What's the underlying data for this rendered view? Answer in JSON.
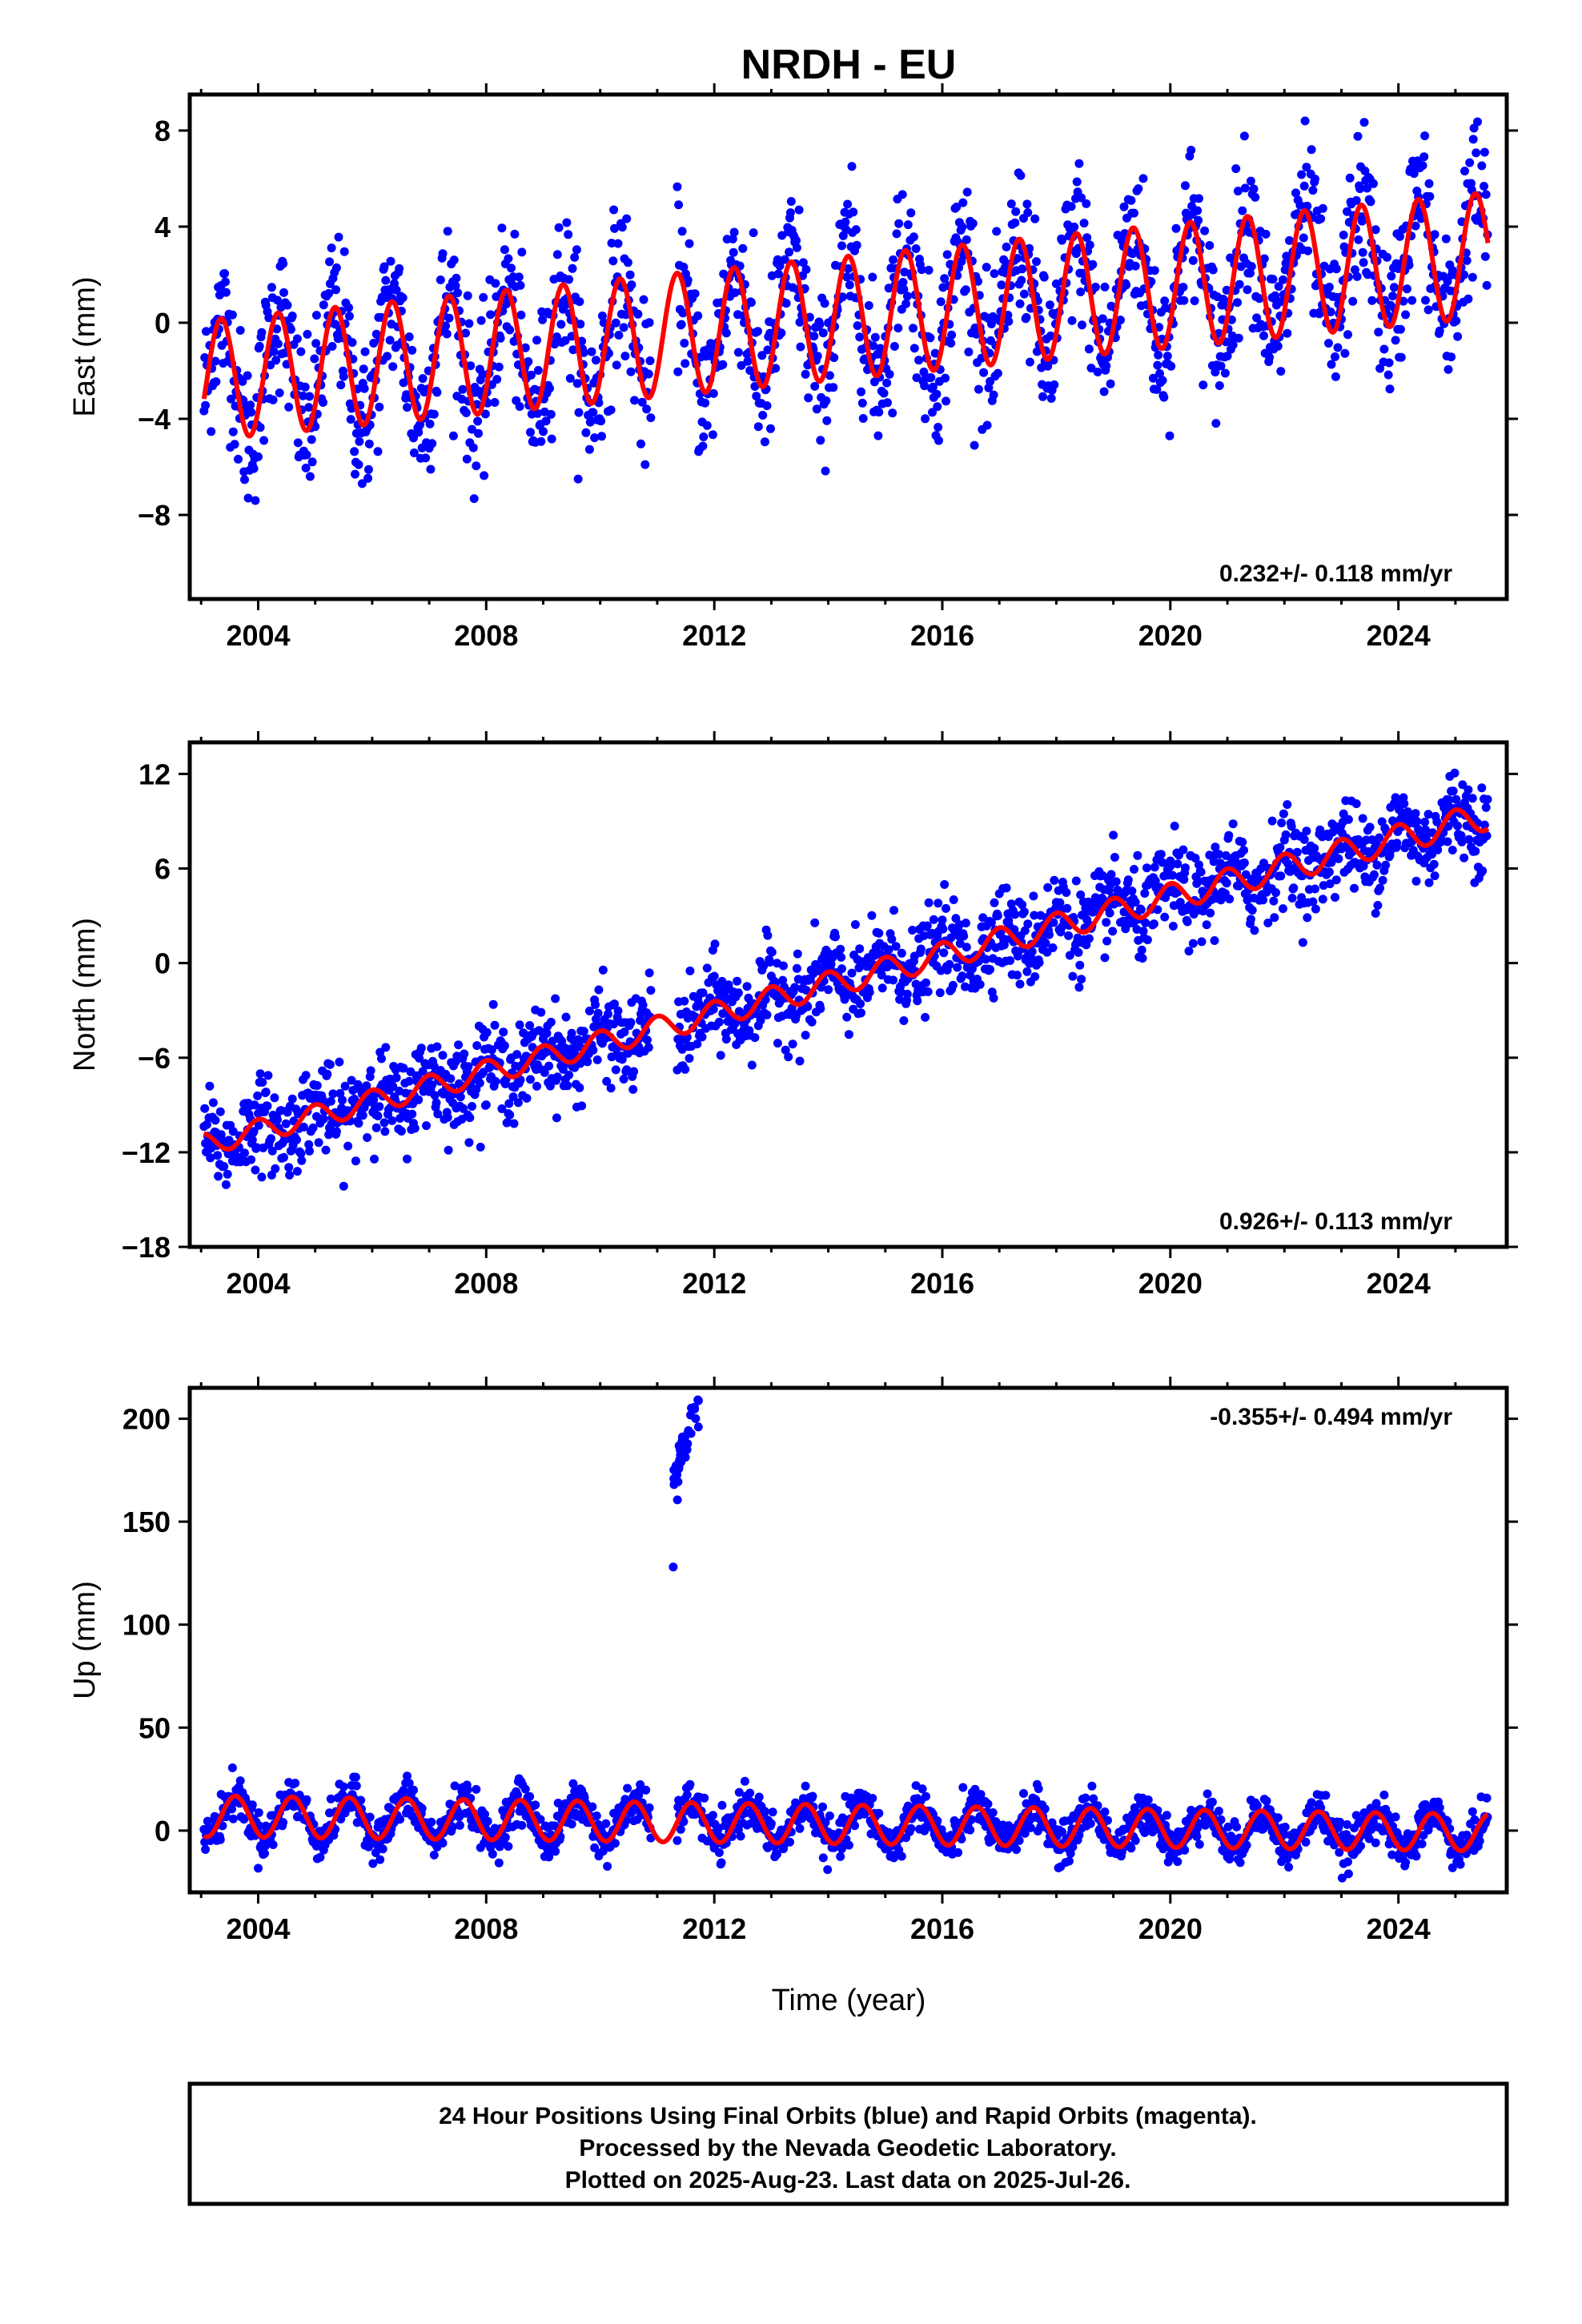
{
  "chart_data": {
    "title": "NRDH - EU",
    "xlabel": "Time (year)",
    "xlim": [
      2002.8,
      2025.9
    ],
    "xticks": [
      2004,
      2008,
      2012,
      2016,
      2020,
      2024
    ],
    "xticklabels": [
      "2004",
      "2008",
      "2012",
      "2016",
      "2020",
      "2024"
    ],
    "data_range": [
      2003.05,
      2025.57
    ],
    "final_color": "#0000ff",
    "model_color": "#ff0000",
    "panels": [
      {
        "type": "scatter",
        "ylabel": "East (mm)",
        "ylim": [
          -11.5,
          9.5
        ],
        "yticks": [
          8,
          4,
          0,
          -4,
          -8
        ],
        "yticklabels": [
          "8",
          "4",
          "0",
          "−4",
          "−8"
        ],
        "rate_text": "0.232+/- 0.118 mm/yr",
        "model": {
          "offset": -2.4,
          "rate": 0.232,
          "amplitude_start": 2.5,
          "amplitude_end": 2.6,
          "phase_peak": 0.35
        },
        "scatter_sd": 1.6
      },
      {
        "type": "scatter",
        "ylabel": "North (mm)",
        "ylim": [
          -18,
          14
        ],
        "yticks": [
          12,
          6,
          0,
          -6,
          -12,
          -18
        ],
        "yticklabels": [
          "12",
          "6",
          "0",
          "−6",
          "−12",
          "−18"
        ],
        "rate_text": "0.926+/- 0.113 mm/yr",
        "model": {
          "offset": -11.5,
          "rate": 0.926,
          "amplitude_start": 0.7,
          "amplitude_end": 0.9,
          "phase_peak": 0.0
        },
        "scatter_sd": 1.4
      },
      {
        "type": "scatter",
        "ylabel": "Up (mm)",
        "ylim": [
          -30,
          215
        ],
        "yticks": [
          200,
          150,
          100,
          50,
          0
        ],
        "yticklabels": [
          "200",
          "150",
          "100",
          "50",
          "0"
        ],
        "rate_text": "-0.355+/- 0.494 mm/yr",
        "model": {
          "offset": 7,
          "rate": -0.355,
          "amplitude_start": 10,
          "amplitude_end": 9,
          "phase_peak": 0.6
        },
        "scatter_sd": 5,
        "outliers": {
          "x_range": [
            2011.28,
            2011.75
          ],
          "y_range": [
            170,
            210
          ],
          "isolated_point": [
            2011.28,
            128
          ]
        }
      }
    ],
    "footer_lines": [
      "24 Hour Positions Using Final Orbits (blue) and Rapid Orbits (magenta).",
      "Processed by the Nevada Geodetic Laboratory.",
      "Plotted on 2025-Aug-23. Last data on 2025-Jul-26."
    ]
  }
}
